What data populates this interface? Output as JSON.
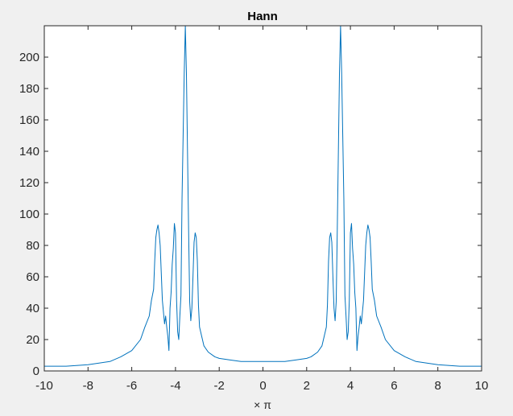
{
  "figure": {
    "background": "#f0f0f0"
  },
  "chart_data": {
    "type": "line",
    "title": "Hann",
    "xlabel": "× π",
    "ylabel": "",
    "xlim": [
      -10,
      10
    ],
    "ylim": [
      0,
      220
    ],
    "x_ticks": [
      -10,
      -8,
      -6,
      -4,
      -2,
      0,
      2,
      4,
      6,
      8,
      10
    ],
    "y_ticks": [
      0,
      20,
      40,
      60,
      80,
      100,
      120,
      140,
      160,
      180,
      200
    ],
    "grid": false,
    "line_color": "#0072bd",
    "series": [
      {
        "x": [
          -10,
          -9,
          -8,
          -7,
          -6.5,
          -6,
          -5.6,
          -5.4,
          -5.2,
          -5.1,
          -5.0,
          -4.95,
          -4.9,
          -4.85,
          -4.8,
          -4.75,
          -4.7,
          -4.6,
          -4.5,
          -4.45,
          -4.4,
          -4.35,
          -4.3,
          -4.25,
          -4.2,
          -4.15,
          -4.1,
          -4.05,
          -4.0,
          -3.95,
          -3.9,
          -3.85,
          -3.8,
          -3.75,
          -3.7,
          -3.65,
          -3.6,
          -3.55,
          -3.5,
          -3.45,
          -3.4,
          -3.35,
          -3.3,
          -3.25,
          -3.2,
          -3.15,
          -3.1,
          -3.05,
          -3.0,
          -2.95,
          -2.9,
          -2.8,
          -2.7,
          -2.5,
          -2.2,
          -2.0,
          -1.5,
          -1.0,
          -0.5,
          0,
          0.5,
          1.0,
          1.5,
          2.0,
          2.2,
          2.5,
          2.7,
          2.8,
          2.9,
          2.95,
          3.0,
          3.05,
          3.1,
          3.15,
          3.2,
          3.25,
          3.3,
          3.35,
          3.4,
          3.45,
          3.5,
          3.55,
          3.6,
          3.65,
          3.7,
          3.75,
          3.8,
          3.85,
          3.9,
          3.95,
          4.0,
          4.05,
          4.1,
          4.15,
          4.2,
          4.25,
          4.3,
          4.35,
          4.4,
          4.45,
          4.5,
          4.6,
          4.7,
          4.75,
          4.8,
          4.85,
          4.9,
          4.95,
          5.0,
          5.1,
          5.2,
          5.4,
          5.6,
          6,
          6.5,
          7,
          8,
          9,
          10
        ],
        "y": [
          3,
          3,
          4,
          6,
          9,
          13,
          20,
          28,
          35,
          45,
          52,
          70,
          85,
          90,
          93,
          88,
          80,
          45,
          30,
          35,
          28,
          22,
          13,
          40,
          50,
          68,
          78,
          94,
          88,
          45,
          25,
          20,
          35,
          48,
          110,
          150,
          190,
          220,
          190,
          140,
          90,
          44,
          32,
          40,
          60,
          82,
          88,
          85,
          70,
          42,
          28,
          22,
          16,
          12,
          9,
          8,
          7,
          6,
          6,
          6,
          6,
          6,
          7,
          8,
          9,
          12,
          16,
          22,
          28,
          42,
          70,
          85,
          88,
          82,
          60,
          40,
          32,
          44,
          90,
          140,
          190,
          220,
          190,
          150,
          110,
          48,
          35,
          20,
          25,
          45,
          88,
          94,
          78,
          68,
          50,
          40,
          13,
          22,
          28,
          35,
          30,
          45,
          80,
          88,
          93,
          90,
          85,
          70,
          52,
          45,
          35,
          28,
          20,
          13,
          9,
          6,
          4,
          3,
          3
        ]
      }
    ]
  }
}
